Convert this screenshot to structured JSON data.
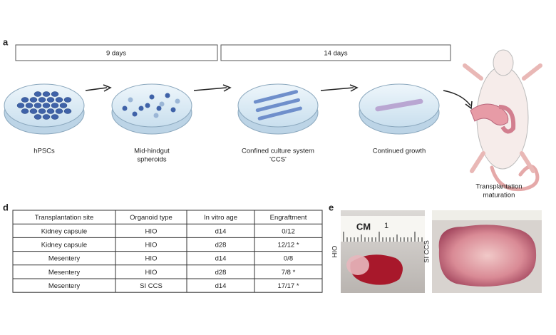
{
  "panels": {
    "a": "a",
    "d": "d",
    "e": "e"
  },
  "timeline": [
    "9 days",
    "14 days"
  ],
  "steps": [
    [
      "hPSCs"
    ],
    [
      "Mid-hindgut",
      "spheroids"
    ],
    [
      "Confined culture system",
      "'CCS'"
    ],
    [
      "Continued growth"
    ],
    [
      "Transplantation",
      "maturation"
    ]
  ],
  "table": {
    "header": [
      "Transplantation site",
      "Organoid type",
      "In vitro age",
      "Engraftment"
    ],
    "rows": [
      [
        "Kidney capsule",
        "HIO",
        "d14",
        "0/12"
      ],
      [
        "Kidney capsule",
        "HIO",
        "d28",
        "12/12 *"
      ],
      [
        "Mesentery",
        "HIO",
        "d14",
        "0/8"
      ],
      [
        "Mesentery",
        "HIO",
        "d28",
        "7/8 *"
      ],
      [
        "Mesentery",
        "SI CCS",
        "d14",
        "17/17 *"
      ]
    ]
  },
  "photos": {
    "left_label": "HIO",
    "right_label": "SI CCS",
    "ruler_unit": "CM",
    "ruler_mark": "1"
  }
}
